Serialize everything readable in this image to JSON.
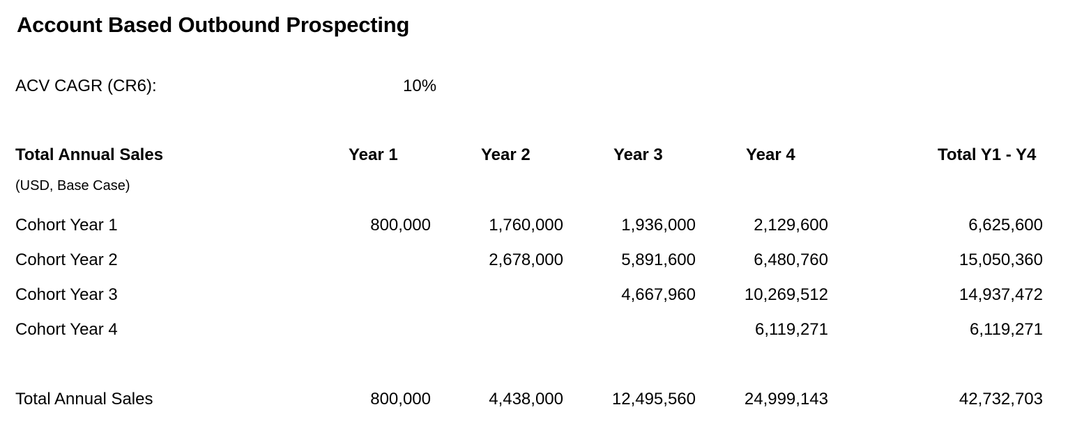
{
  "title": "Account Based Outbound Prospecting",
  "parameter": {
    "label": "ACV CAGR (CR6):",
    "value": "10%"
  },
  "table": {
    "header_label": "Total Annual Sales",
    "subheader": "(USD, Base Case)",
    "columns": [
      "Year 1",
      "Year 2",
      "Year 3",
      "Year 4",
      "Total Y1 - Y4"
    ],
    "rows": [
      {
        "label": "Cohort Year 1",
        "values": [
          "800,000",
          "1,760,000",
          "1,936,000",
          "2,129,600",
          "6,625,600"
        ]
      },
      {
        "label": "Cohort Year 2",
        "values": [
          "",
          "2,678,000",
          "5,891,600",
          "6,480,760",
          "15,050,360"
        ]
      },
      {
        "label": "Cohort Year 3",
        "values": [
          "",
          "",
          "4,667,960",
          "10,269,512",
          "14,937,472"
        ]
      },
      {
        "label": "Cohort Year 4",
        "values": [
          "",
          "",
          "",
          "6,119,271",
          "6,119,271"
        ]
      }
    ],
    "total": {
      "label": "Total Annual Sales",
      "values": [
        "800,000",
        "4,438,000",
        "12,495,560",
        "24,999,143",
        "42,732,703"
      ]
    }
  }
}
